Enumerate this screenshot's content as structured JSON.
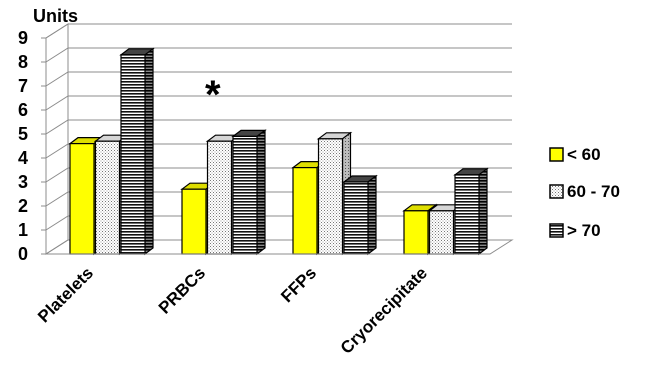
{
  "chart_data": {
    "type": "bar",
    "ylabel": "Units",
    "xlabel": "",
    "ylim": [
      0,
      9
    ],
    "yticks": [
      "0",
      "1",
      "2",
      "3",
      "4",
      "5",
      "6",
      "7",
      "8",
      "9"
    ],
    "categories": [
      "Platelets",
      "PRBCs",
      "FFPs",
      "Cryorecipitate"
    ],
    "series": [
      {
        "name": "< 60",
        "values": [
          4.6,
          2.7,
          3.6,
          1.8
        ],
        "color": "#ffff00",
        "pattern": "solid"
      },
      {
        "name": "60 - 70",
        "values": [
          4.7,
          4.7,
          4.8,
          1.8
        ],
        "color": "#ffffff",
        "pattern": "dotted"
      },
      {
        "name": "> 70",
        "values": [
          8.3,
          4.9,
          3.0,
          3.3
        ],
        "color": "#ffffff",
        "pattern": "horizontal-stripes"
      }
    ],
    "annotation": "*",
    "grid": true,
    "legend_position": "right",
    "style": "3d-bar"
  }
}
